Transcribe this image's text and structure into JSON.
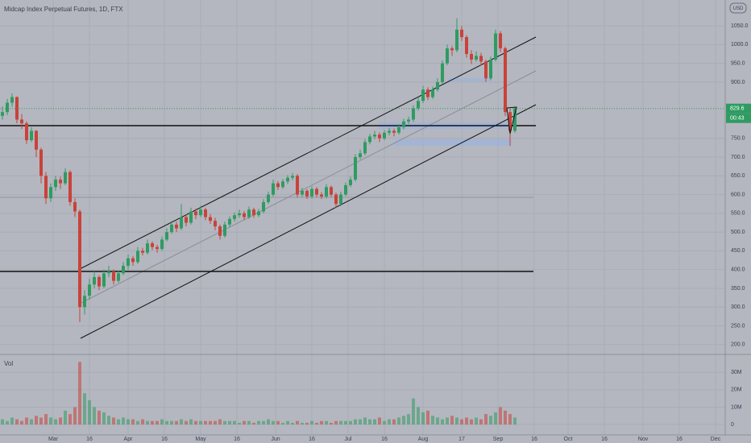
{
  "title": "Midcap Index Perpetual Futures, 1D, FTX",
  "currency": "USD",
  "countdown": "00:43",
  "chart_data": {
    "type": "candlestick",
    "volume_label": "Vol",
    "up_color": "#2f9b62",
    "down_color": "#c9423a",
    "grid": true,
    "xlim": [
      -0.5,
      149.5
    ],
    "xticks": [
      {
        "value": 10.5,
        "label": "Mar"
      },
      {
        "value": 18,
        "label": "16"
      },
      {
        "value": 26,
        "label": "Apr"
      },
      {
        "value": 33.5,
        "label": "16"
      },
      {
        "value": 41,
        "label": "May"
      },
      {
        "value": 48.5,
        "label": "16"
      },
      {
        "value": 56.5,
        "label": "Jun"
      },
      {
        "value": 64,
        "label": "16"
      },
      {
        "value": 71.5,
        "label": "Jul"
      },
      {
        "value": 79,
        "label": "16"
      },
      {
        "value": 87,
        "label": "Aug"
      },
      {
        "value": 95,
        "label": "17"
      },
      {
        "value": 102.5,
        "label": "Sep"
      },
      {
        "value": 110,
        "label": "16"
      },
      {
        "value": 117,
        "label": "Oct"
      },
      {
        "value": 124.5,
        "label": "16"
      },
      {
        "value": 132.5,
        "label": "Nov"
      },
      {
        "value": 140,
        "label": "16"
      },
      {
        "value": 147.5,
        "label": "Dec"
      }
    ],
    "ylim": [
      178,
      1119
    ],
    "yticks": [
      {
        "value": 1050,
        "label": "1050.0"
      },
      {
        "value": 1000,
        "label": "1000.0"
      },
      {
        "value": 950,
        "label": "950.0"
      },
      {
        "value": 900,
        "label": "900.0"
      },
      {
        "value": 750,
        "label": "750.0"
      },
      {
        "value": 700,
        "label": "700.0"
      },
      {
        "value": 650,
        "label": "650.0"
      },
      {
        "value": 600,
        "label": "600.0"
      },
      {
        "value": 550,
        "label": "550.0"
      },
      {
        "value": 500,
        "label": "500.0"
      },
      {
        "value": 450,
        "label": "450.0"
      },
      {
        "value": 400,
        "label": "400.0"
      },
      {
        "value": 350,
        "label": "350.0"
      },
      {
        "value": 300,
        "label": "300.0"
      },
      {
        "value": 250,
        "label": "250.0"
      },
      {
        "value": 200,
        "label": "200.0"
      }
    ],
    "vol_ylim": [
      -6,
      38
    ],
    "vol_yticks": [
      {
        "value": 30,
        "label": "30M"
      },
      {
        "value": 20,
        "label": "20M"
      },
      {
        "value": 10,
        "label": "10M"
      },
      0
    ],
    "candles": [
      [
        810,
        835,
        800,
        820
      ],
      [
        820,
        855,
        812,
        845
      ],
      [
        845,
        870,
        835,
        860
      ],
      [
        860,
        862,
        790,
        800
      ],
      [
        800,
        815,
        775,
        790
      ],
      [
        790,
        795,
        735,
        745
      ],
      [
        745,
        780,
        740,
        770
      ],
      [
        770,
        772,
        700,
        720
      ],
      [
        720,
        725,
        630,
        650
      ],
      [
        650,
        660,
        575,
        590
      ],
      [
        590,
        630,
        580,
        620
      ],
      [
        620,
        650,
        610,
        640
      ],
      [
        640,
        648,
        615,
        630
      ],
      [
        630,
        670,
        625,
        660
      ],
      [
        660,
        665,
        570,
        580
      ],
      [
        580,
        590,
        540,
        555
      ],
      [
        555,
        560,
        260,
        300
      ],
      [
        300,
        345,
        280,
        330
      ],
      [
        330,
        375,
        320,
        360
      ],
      [
        360,
        395,
        350,
        380
      ],
      [
        380,
        385,
        345,
        355
      ],
      [
        355,
        400,
        350,
        390
      ],
      [
        390,
        410,
        380,
        395
      ],
      [
        395,
        400,
        360,
        370
      ],
      [
        370,
        398,
        365,
        390
      ],
      [
        390,
        420,
        385,
        410
      ],
      [
        410,
        440,
        400,
        430
      ],
      [
        430,
        436,
        410,
        420
      ],
      [
        420,
        460,
        415,
        450
      ],
      [
        450,
        458,
        438,
        445
      ],
      [
        445,
        480,
        440,
        470
      ],
      [
        470,
        475,
        452,
        460
      ],
      [
        460,
        466,
        445,
        455
      ],
      [
        455,
        488,
        450,
        480
      ],
      [
        480,
        510,
        475,
        500
      ],
      [
        500,
        530,
        495,
        520
      ],
      [
        520,
        528,
        500,
        510
      ],
      [
        510,
        575,
        505,
        540
      ],
      [
        540,
        548,
        515,
        525
      ],
      [
        525,
        565,
        520,
        555
      ],
      [
        555,
        562,
        535,
        545
      ],
      [
        545,
        570,
        540,
        560
      ],
      [
        560,
        565,
        532,
        540
      ],
      [
        540,
        548,
        522,
        530
      ],
      [
        530,
        538,
        505,
        515
      ],
      [
        515,
        520,
        480,
        490
      ],
      [
        490,
        528,
        485,
        520
      ],
      [
        520,
        542,
        512,
        535
      ],
      [
        535,
        552,
        528,
        545
      ],
      [
        545,
        560,
        538,
        550
      ],
      [
        550,
        556,
        532,
        540
      ],
      [
        540,
        568,
        535,
        560
      ],
      [
        560,
        565,
        538,
        545
      ],
      [
        545,
        562,
        540,
        555
      ],
      [
        555,
        588,
        550,
        580
      ],
      [
        580,
        608,
        575,
        600
      ],
      [
        600,
        640,
        595,
        630
      ],
      [
        630,
        636,
        612,
        620
      ],
      [
        620,
        642,
        615,
        635
      ],
      [
        635,
        652,
        628,
        645
      ],
      [
        645,
        658,
        638,
        650
      ],
      [
        650,
        655,
        592,
        600
      ],
      [
        600,
        618,
        594,
        610
      ],
      [
        610,
        614,
        588,
        595
      ],
      [
        595,
        622,
        590,
        615
      ],
      [
        615,
        620,
        594,
        600
      ],
      [
        600,
        606,
        588,
        595
      ],
      [
        595,
        628,
        590,
        620
      ],
      [
        620,
        624,
        594,
        600
      ],
      [
        600,
        605,
        565,
        575
      ],
      [
        575,
        608,
        570,
        600
      ],
      [
        600,
        632,
        596,
        625
      ],
      [
        625,
        648,
        620,
        640
      ],
      [
        640,
        708,
        635,
        700
      ],
      [
        700,
        720,
        694,
        710
      ],
      [
        710,
        748,
        705,
        740
      ],
      [
        740,
        762,
        734,
        755
      ],
      [
        755,
        770,
        748,
        760
      ],
      [
        760,
        766,
        740,
        750
      ],
      [
        750,
        772,
        745,
        765
      ],
      [
        765,
        778,
        758,
        770
      ],
      [
        770,
        776,
        755,
        765
      ],
      [
        765,
        788,
        760,
        780
      ],
      [
        780,
        802,
        774,
        795
      ],
      [
        795,
        808,
        788,
        800
      ],
      [
        800,
        838,
        794,
        830
      ],
      [
        830,
        860,
        824,
        850
      ],
      [
        850,
        890,
        844,
        880
      ],
      [
        880,
        886,
        852,
        860
      ],
      [
        860,
        888,
        855,
        880
      ],
      [
        880,
        910,
        875,
        900
      ],
      [
        900,
        958,
        895,
        950
      ],
      [
        950,
        1000,
        945,
        990
      ],
      [
        990,
        996,
        970,
        985
      ],
      [
        985,
        1070,
        980,
        1040
      ],
      [
        1040,
        1050,
        1010,
        1020
      ],
      [
        1020,
        1025,
        965,
        975
      ],
      [
        975,
        985,
        948,
        960
      ],
      [
        960,
        982,
        955,
        970
      ],
      [
        970,
        978,
        945,
        955
      ],
      [
        955,
        960,
        900,
        910
      ],
      [
        910,
        968,
        905,
        960
      ],
      [
        960,
        1040,
        955,
        1030
      ],
      [
        1030,
        1036,
        980,
        990
      ],
      [
        990,
        995,
        810,
        820
      ],
      [
        820,
        830,
        730,
        770
      ],
      [
        770,
        835,
        765,
        829.6
      ]
    ],
    "volume": [
      3,
      2,
      4,
      3,
      2,
      4,
      3,
      5,
      4,
      6,
      4,
      3,
      4,
      8,
      6,
      10,
      36,
      18,
      14,
      10,
      8,
      7,
      5,
      4,
      3,
      4,
      3,
      3,
      2,
      3,
      2,
      2,
      2,
      3,
      2,
      2,
      2,
      3,
      2,
      3,
      2,
      2,
      2,
      2,
      2,
      3,
      2,
      2,
      2,
      1,
      2,
      2,
      1,
      2,
      2,
      3,
      2,
      2,
      1,
      2,
      1,
      2,
      1,
      1,
      2,
      1,
      2,
      2,
      1,
      2,
      2,
      2,
      2,
      3,
      3,
      4,
      3,
      3,
      4,
      2,
      3,
      3,
      4,
      5,
      6,
      15,
      10,
      7,
      8,
      5,
      4,
      3,
      4,
      5,
      4,
      3,
      4,
      3,
      4,
      3,
      6,
      5,
      7,
      10,
      8,
      6,
      4
    ]
  }
}
